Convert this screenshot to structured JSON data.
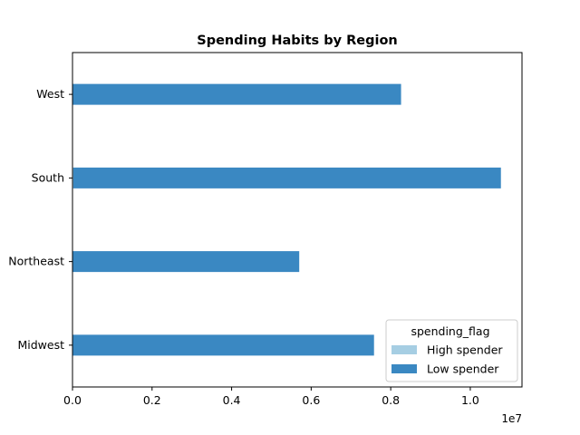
{
  "chart_data": {
    "type": "bar",
    "orientation": "horizontal",
    "title": "Spending Habits by Region",
    "xlabel": "",
    "ylabel": "",
    "x_scale_label": "1e7",
    "xlim": [
      0,
      11300000
    ],
    "xticks": [
      0,
      2000000,
      4000000,
      6000000,
      8000000,
      10000000
    ],
    "xtick_labels": [
      "0.0",
      "0.2",
      "0.4",
      "0.6",
      "0.8",
      "1.0"
    ],
    "categories": [
      "Midwest",
      "Northeast",
      "South",
      "West"
    ],
    "series": [
      {
        "name": "High spender",
        "color": "#a6cee3",
        "values": [
          0,
          0,
          20000,
          0
        ]
      },
      {
        "name": "Low spender",
        "color": "#3a88c2",
        "values": [
          7580000,
          5700000,
          10750000,
          8260000
        ]
      }
    ],
    "legend": {
      "title": "spending_flag",
      "placement": "lower-right"
    },
    "grid": false
  }
}
